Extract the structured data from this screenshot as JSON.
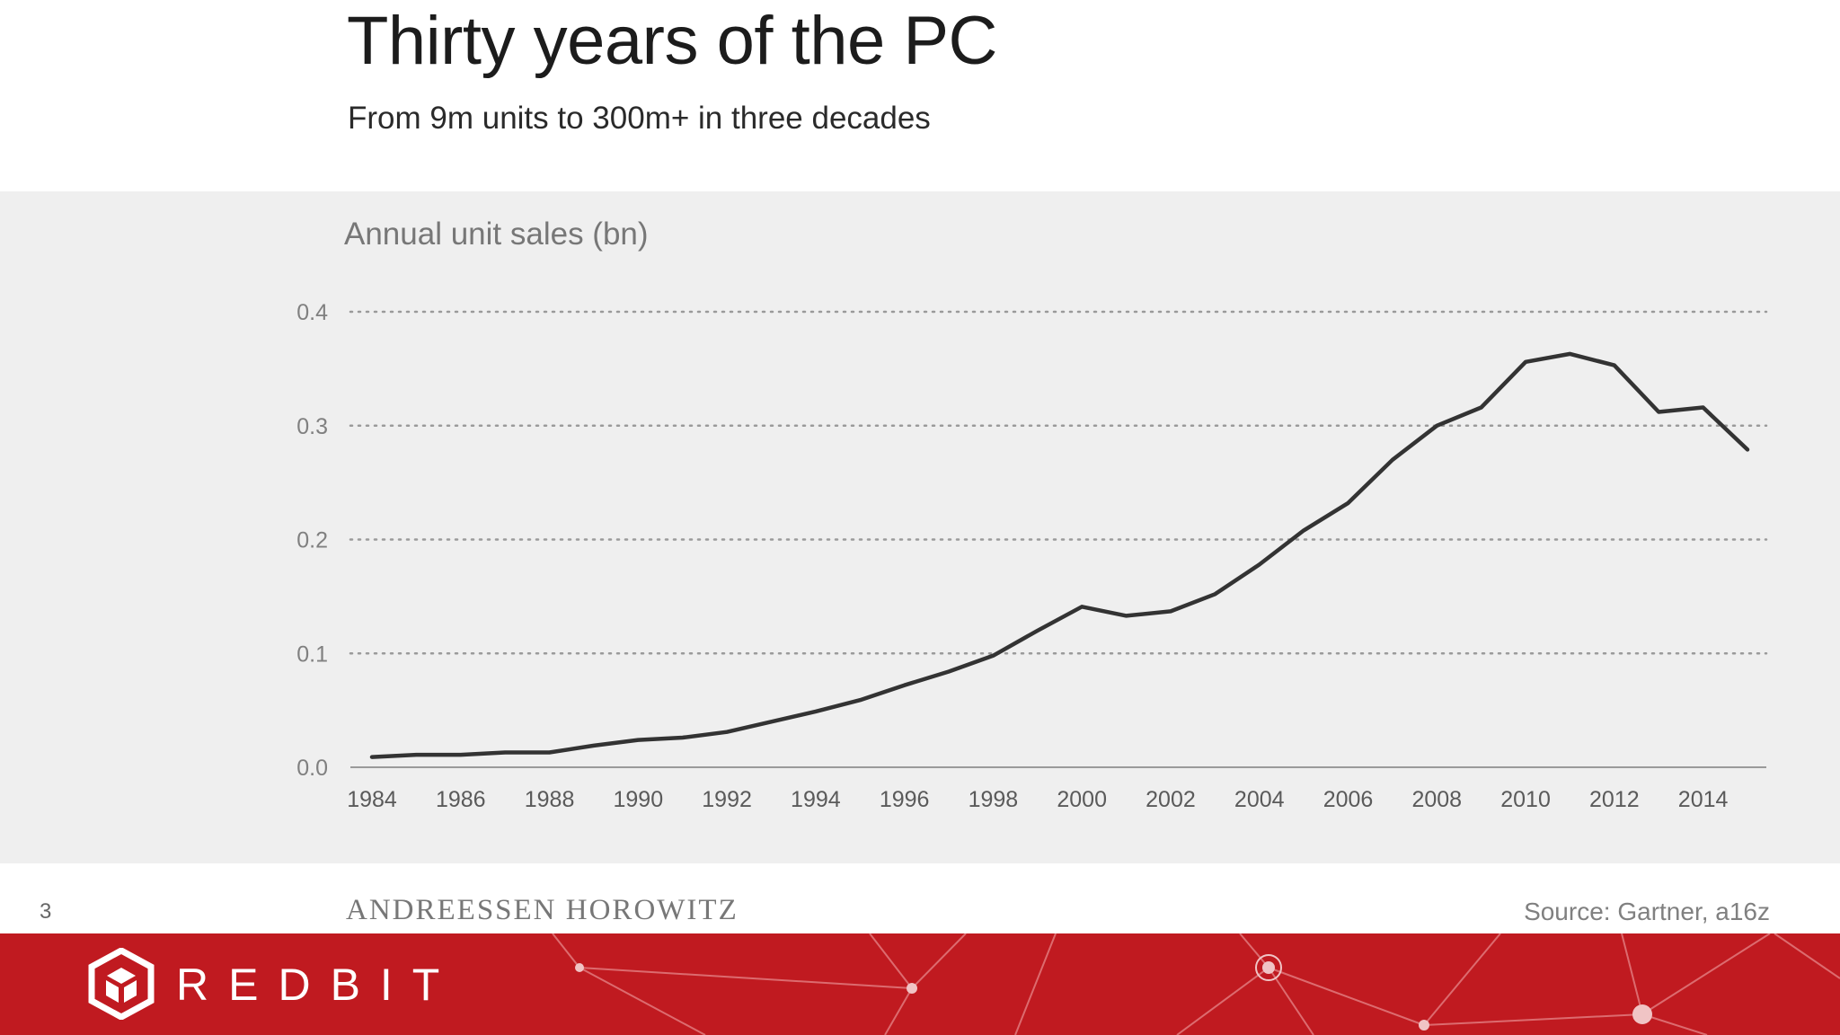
{
  "slide": {
    "title": "Thirty years of the PC",
    "subtitle": "From 9m units to 300m+ in three decades",
    "page_number": "3",
    "brand": "ANDREESSEN HOROWITZ",
    "source": "Source: Gartner, a16z"
  },
  "banner": {
    "logo_text": "REDBIT",
    "color": "#c01a20"
  },
  "chart_data": {
    "type": "line",
    "title": "Annual unit sales (bn)",
    "xlabel": "",
    "ylabel": "",
    "ylim": [
      0,
      0.4
    ],
    "xlim": [
      1984,
      2015
    ],
    "yticks": [
      "0.0",
      "0.1",
      "0.2",
      "0.3",
      "0.4"
    ],
    "xticks": [
      "1984",
      "1986",
      "1988",
      "1990",
      "1992",
      "1994",
      "1996",
      "1998",
      "2000",
      "2002",
      "2004",
      "2006",
      "2008",
      "2010",
      "2012",
      "2014"
    ],
    "grid": "horizontal dotted",
    "line_color": "#333333",
    "series": [
      {
        "x": [
          1984,
          1985,
          1986,
          1987,
          1988,
          1989,
          1990,
          1991,
          1992,
          1993,
          1994,
          1995,
          1996,
          1997,
          1998,
          1999,
          2000,
          2001,
          2002,
          2003,
          2004,
          2005,
          2006,
          2007,
          2008,
          2009,
          2010,
          2011,
          2012,
          2013,
          2014,
          2015
        ],
        "values": [
          0.009,
          0.011,
          0.011,
          0.013,
          0.013,
          0.019,
          0.024,
          0.026,
          0.031,
          0.04,
          0.049,
          0.059,
          0.072,
          0.084,
          0.098,
          0.12,
          0.141,
          0.133,
          0.137,
          0.152,
          0.178,
          0.208,
          0.232,
          0.27,
          0.3,
          0.316,
          0.356,
          0.363,
          0.353,
          0.312,
          0.316,
          0.279
        ]
      }
    ]
  }
}
